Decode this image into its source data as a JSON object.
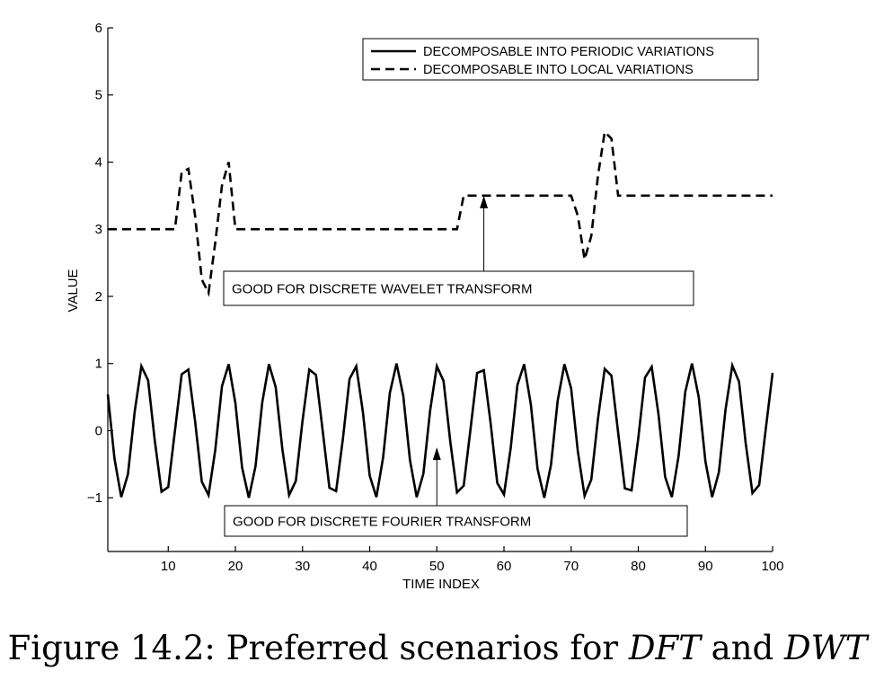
{
  "chart_data": {
    "type": "line",
    "xlabel": "TIME INDEX",
    "ylabel": "VALUE",
    "xlim": [
      1,
      100
    ],
    "ylim": [
      -1.8,
      6
    ],
    "xticks": [
      10,
      20,
      30,
      40,
      50,
      60,
      70,
      80,
      90,
      100
    ],
    "yticks": [
      -1,
      0,
      1,
      2,
      3,
      4,
      5,
      6
    ],
    "grid": false,
    "legend_position": "top-right",
    "series": [
      {
        "name": "DECOMPOSABLE INTO PERIODIC VARIATIONS",
        "style": "solid",
        "color": "#000000",
        "x": [
          1,
          2,
          3,
          4,
          5,
          6,
          7,
          8,
          9,
          10,
          11,
          12,
          13,
          14,
          15,
          16,
          17,
          18,
          19,
          20,
          21,
          22,
          23,
          24,
          25,
          26,
          27,
          28,
          29,
          30,
          31,
          32,
          33,
          34,
          35,
          36,
          37,
          38,
          39,
          40,
          41,
          42,
          43,
          44,
          45,
          46,
          47,
          48,
          49,
          50,
          51,
          52,
          53,
          54,
          55,
          56,
          57,
          58,
          59,
          60,
          61,
          62,
          63,
          64,
          65,
          66,
          67,
          68,
          69,
          70,
          71,
          72,
          73,
          74,
          75,
          76,
          77,
          78,
          79,
          80,
          81,
          82,
          83,
          84,
          85,
          86,
          87,
          88,
          89,
          90,
          91,
          92,
          93,
          94,
          95,
          96,
          97,
          98,
          99,
          100
        ],
        "values": [
          0.54,
          -0.42,
          -0.99,
          -0.65,
          0.28,
          0.96,
          0.75,
          -0.15,
          -0.91,
          -0.84,
          0.0,
          0.84,
          0.91,
          0.14,
          -0.76,
          -0.96,
          -0.29,
          0.66,
          0.99,
          0.41,
          -0.55,
          -1.0,
          -0.53,
          0.42,
          0.99,
          0.65,
          -0.28,
          -0.96,
          -0.75,
          0.15,
          0.91,
          0.83,
          0.0,
          -0.85,
          -0.9,
          -0.13,
          0.77,
          0.96,
          0.27,
          -0.67,
          -0.99,
          -0.4,
          0.56,
          1.0,
          0.52,
          -0.44,
          -0.99,
          -0.64,
          0.3,
          0.96,
          0.74,
          -0.16,
          -0.92,
          -0.82,
          0.01,
          0.86,
          0.9,
          0.12,
          -0.78,
          -0.95,
          -0.26,
          0.68,
          0.99,
          0.39,
          -0.57,
          -1.0,
          -0.51,
          0.45,
          0.99,
          0.63,
          -0.31,
          -0.97,
          -0.73,
          0.18,
          0.92,
          0.82,
          -0.03,
          -0.86,
          -0.89,
          -0.11,
          0.79,
          0.95,
          0.25,
          -0.69,
          -0.99,
          -0.38,
          0.58,
          1.0,
          0.5,
          -0.46,
          -0.99,
          -0.62,
          0.32,
          0.97,
          0.73,
          -0.19,
          -0.93,
          -0.81,
          0.04,
          0.86
        ]
      },
      {
        "name": "DECOMPOSABLE INTO LOCAL VARIATIONS",
        "style": "dashed",
        "color": "#000000",
        "x": [
          1,
          11,
          12,
          13,
          14,
          15,
          16,
          17,
          18,
          19,
          20,
          53,
          54,
          70,
          71,
          72,
          73,
          74,
          75,
          76,
          77,
          100
        ],
        "values": [
          3.0,
          3.0,
          3.85,
          3.9,
          3.2,
          2.25,
          2.05,
          2.8,
          3.65,
          4.0,
          3.0,
          3.0,
          3.5,
          3.5,
          3.2,
          2.55,
          2.9,
          3.8,
          4.45,
          4.35,
          3.5,
          3.5
        ]
      }
    ],
    "annotations": [
      {
        "text": "GOOD FOR DISCRETE WAVELET TRANSFORM",
        "arrow_to": [
          57,
          3.5
        ]
      },
      {
        "text": "GOOD FOR DISCRETE FOURIER TRANSFORM",
        "arrow_to": [
          50,
          -0.25
        ]
      }
    ]
  },
  "caption": {
    "prefix": "Figure 14.2: Preferred scenarios for ",
    "term1": "DFT",
    "middle": " and ",
    "term2": "DWT"
  }
}
